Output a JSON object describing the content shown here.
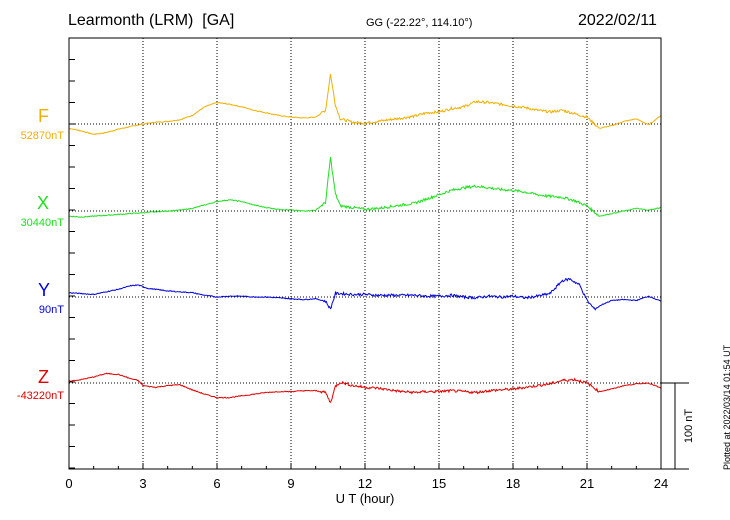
{
  "header": {
    "station": "Learmonth (LRM)  [GA]",
    "coords": "GG (-22.22°, 114.10°)",
    "date": "2022/02/11",
    "credit": "Plotted at 2022/03/14 01:54 UT"
  },
  "chart_data": {
    "type": "line",
    "title": "Learmonth (LRM)  [GA]",
    "xlabel": "U T (hour)",
    "xlim": [
      0,
      24
    ],
    "xticks": [
      0,
      3,
      6,
      9,
      12,
      15,
      18,
      21,
      24
    ],
    "grid": true,
    "scale_bar": "100 nT",
    "series": [
      {
        "name": "F",
        "baseline_label": "52870nT",
        "color": "#f0b000",
        "t": [
          0,
          0.5,
          1,
          1.5,
          2,
          2.5,
          3,
          3.5,
          4,
          4.5,
          5,
          5.5,
          6,
          6.5,
          7,
          7.5,
          8,
          8.5,
          9,
          9.5,
          10,
          10.4,
          10.6,
          10.8,
          11,
          11.5,
          12,
          12.5,
          13,
          13.5,
          14,
          14.5,
          15,
          15.5,
          16,
          16.5,
          17,
          17.5,
          18,
          18.5,
          19,
          19.5,
          20,
          20.5,
          21,
          21.5,
          22,
          22.5,
          23,
          23.5,
          24
        ],
        "delta": [
          -5,
          -8,
          -12,
          -10,
          -6,
          -3,
          0,
          2,
          3,
          5,
          10,
          20,
          25,
          23,
          20,
          16,
          13,
          10,
          8,
          7,
          8,
          16,
          58,
          22,
          6,
          2,
          1,
          3,
          5,
          7,
          9,
          13,
          14,
          18,
          20,
          26,
          25,
          23,
          21,
          19,
          16,
          14,
          16,
          12,
          8,
          -5,
          -2,
          3,
          6,
          -1,
          10
        ]
      },
      {
        "name": "X",
        "baseline_label": "30440nT",
        "color": "#1ee01e",
        "t": [
          0,
          0.5,
          1,
          1.5,
          2,
          2.5,
          3,
          3.5,
          4,
          4.5,
          5,
          5.5,
          6,
          6.5,
          7,
          7.5,
          8,
          8.5,
          9,
          9.5,
          10,
          10.4,
          10.6,
          10.8,
          11,
          11.5,
          12,
          12.5,
          13,
          13.5,
          14,
          14.5,
          15,
          15.5,
          16,
          16.5,
          17,
          17.5,
          18,
          18.5,
          19,
          19.5,
          20,
          20.5,
          21,
          21.5,
          22,
          22.5,
          23,
          23.5,
          24
        ],
        "delta": [
          -6,
          -7,
          -6,
          -5,
          -4,
          -3,
          -2,
          -1,
          0,
          1,
          3,
          7,
          11,
          13,
          11,
          7,
          4,
          2,
          1,
          0,
          1,
          10,
          62,
          20,
          6,
          4,
          2,
          3,
          5,
          7,
          9,
          14,
          19,
          24,
          27,
          29,
          27,
          25,
          24,
          22,
          19,
          17,
          16,
          12,
          6,
          -6,
          -3,
          0,
          3,
          1,
          4
        ]
      },
      {
        "name": "Y",
        "baseline_label": "90nT",
        "color": "#0000e0",
        "t": [
          0,
          0.5,
          1,
          1.5,
          2,
          2.5,
          2.8,
          3.2,
          3.5,
          4,
          4.5,
          5,
          5.5,
          6,
          6.5,
          7,
          7.5,
          8,
          8.5,
          9,
          9.5,
          10,
          10.4,
          10.6,
          10.8,
          11,
          11.5,
          12,
          12.5,
          13,
          13.5,
          14,
          14.5,
          15,
          15.5,
          16,
          16.5,
          17,
          17.5,
          18,
          18.5,
          19,
          19.5,
          20,
          20.3,
          20.7,
          21,
          21.3,
          21.6,
          22,
          22.5,
          23,
          23.5,
          24
        ],
        "delta": [
          5,
          4,
          3,
          6,
          9,
          13,
          14,
          10,
          9,
          7,
          6,
          5,
          2,
          0,
          1,
          1,
          0,
          0,
          -1,
          -2,
          -3,
          -2,
          -5,
          -14,
          4,
          4,
          3,
          3,
          2,
          2,
          2,
          2,
          1,
          1,
          2,
          0,
          -1,
          1,
          0,
          1,
          -1,
          1,
          4,
          19,
          21,
          14,
          -4,
          -14,
          -9,
          -4,
          -3,
          -4,
          1,
          -5
        ]
      },
      {
        "name": "Z",
        "baseline_label": "-43220nT",
        "color": "#e00000",
        "t": [
          0,
          0.5,
          1,
          1.5,
          2,
          2.5,
          2.8,
          3,
          3.5,
          4,
          4.5,
          5,
          5.5,
          6,
          6.5,
          7,
          7.5,
          8,
          8.5,
          9,
          9.5,
          10,
          10.4,
          10.6,
          10.8,
          11,
          11.5,
          12,
          12.5,
          13,
          13.5,
          14,
          14.5,
          15,
          15.5,
          16,
          16.5,
          17,
          17.5,
          18,
          18.5,
          19,
          19.5,
          20,
          20.5,
          21,
          21.5,
          22,
          22.5,
          23,
          23.5,
          24
        ],
        "delta": [
          2,
          4,
          7,
          11,
          10,
          5,
          3,
          -3,
          -5,
          -3,
          -2,
          -8,
          -13,
          -17,
          -17,
          -15,
          -13,
          -11,
          -10,
          -10,
          -9,
          -9,
          -11,
          -23,
          -4,
          1,
          -3,
          -5,
          -6,
          -8,
          -10,
          -11,
          -10,
          -10,
          -9,
          -10,
          -11,
          -9,
          -8,
          -7,
          -5,
          -3,
          -1,
          3,
          4,
          0,
          -10,
          -7,
          -3,
          -1,
          0,
          -6
        ]
      }
    ]
  }
}
